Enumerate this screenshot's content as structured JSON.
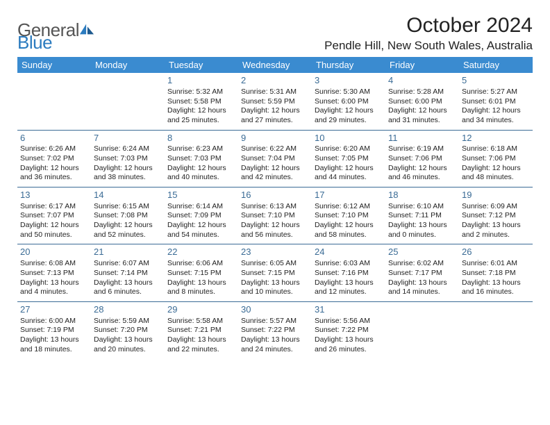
{
  "logo": {
    "word1": "General",
    "word2": "Blue"
  },
  "title": "October 2024",
  "location": "Pendle Hill, New South Wales, Australia",
  "header_bg": "#3a8bd0",
  "rule_color": "#3a6b95",
  "day_headers": [
    "Sunday",
    "Monday",
    "Tuesday",
    "Wednesday",
    "Thursday",
    "Friday",
    "Saturday"
  ],
  "weeks": [
    [
      {
        "n": "",
        "sr": "",
        "ss": "",
        "dl": ""
      },
      {
        "n": "",
        "sr": "",
        "ss": "",
        "dl": ""
      },
      {
        "n": "1",
        "sr": "Sunrise: 5:32 AM",
        "ss": "Sunset: 5:58 PM",
        "dl": "Daylight: 12 hours and 25 minutes."
      },
      {
        "n": "2",
        "sr": "Sunrise: 5:31 AM",
        "ss": "Sunset: 5:59 PM",
        "dl": "Daylight: 12 hours and 27 minutes."
      },
      {
        "n": "3",
        "sr": "Sunrise: 5:30 AM",
        "ss": "Sunset: 6:00 PM",
        "dl": "Daylight: 12 hours and 29 minutes."
      },
      {
        "n": "4",
        "sr": "Sunrise: 5:28 AM",
        "ss": "Sunset: 6:00 PM",
        "dl": "Daylight: 12 hours and 31 minutes."
      },
      {
        "n": "5",
        "sr": "Sunrise: 5:27 AM",
        "ss": "Sunset: 6:01 PM",
        "dl": "Daylight: 12 hours and 34 minutes."
      }
    ],
    [
      {
        "n": "6",
        "sr": "Sunrise: 6:26 AM",
        "ss": "Sunset: 7:02 PM",
        "dl": "Daylight: 12 hours and 36 minutes."
      },
      {
        "n": "7",
        "sr": "Sunrise: 6:24 AM",
        "ss": "Sunset: 7:03 PM",
        "dl": "Daylight: 12 hours and 38 minutes."
      },
      {
        "n": "8",
        "sr": "Sunrise: 6:23 AM",
        "ss": "Sunset: 7:03 PM",
        "dl": "Daylight: 12 hours and 40 minutes."
      },
      {
        "n": "9",
        "sr": "Sunrise: 6:22 AM",
        "ss": "Sunset: 7:04 PM",
        "dl": "Daylight: 12 hours and 42 minutes."
      },
      {
        "n": "10",
        "sr": "Sunrise: 6:20 AM",
        "ss": "Sunset: 7:05 PM",
        "dl": "Daylight: 12 hours and 44 minutes."
      },
      {
        "n": "11",
        "sr": "Sunrise: 6:19 AM",
        "ss": "Sunset: 7:06 PM",
        "dl": "Daylight: 12 hours and 46 minutes."
      },
      {
        "n": "12",
        "sr": "Sunrise: 6:18 AM",
        "ss": "Sunset: 7:06 PM",
        "dl": "Daylight: 12 hours and 48 minutes."
      }
    ],
    [
      {
        "n": "13",
        "sr": "Sunrise: 6:17 AM",
        "ss": "Sunset: 7:07 PM",
        "dl": "Daylight: 12 hours and 50 minutes."
      },
      {
        "n": "14",
        "sr": "Sunrise: 6:15 AM",
        "ss": "Sunset: 7:08 PM",
        "dl": "Daylight: 12 hours and 52 minutes."
      },
      {
        "n": "15",
        "sr": "Sunrise: 6:14 AM",
        "ss": "Sunset: 7:09 PM",
        "dl": "Daylight: 12 hours and 54 minutes."
      },
      {
        "n": "16",
        "sr": "Sunrise: 6:13 AM",
        "ss": "Sunset: 7:10 PM",
        "dl": "Daylight: 12 hours and 56 minutes."
      },
      {
        "n": "17",
        "sr": "Sunrise: 6:12 AM",
        "ss": "Sunset: 7:10 PM",
        "dl": "Daylight: 12 hours and 58 minutes."
      },
      {
        "n": "18",
        "sr": "Sunrise: 6:10 AM",
        "ss": "Sunset: 7:11 PM",
        "dl": "Daylight: 13 hours and 0 minutes."
      },
      {
        "n": "19",
        "sr": "Sunrise: 6:09 AM",
        "ss": "Sunset: 7:12 PM",
        "dl": "Daylight: 13 hours and 2 minutes."
      }
    ],
    [
      {
        "n": "20",
        "sr": "Sunrise: 6:08 AM",
        "ss": "Sunset: 7:13 PM",
        "dl": "Daylight: 13 hours and 4 minutes."
      },
      {
        "n": "21",
        "sr": "Sunrise: 6:07 AM",
        "ss": "Sunset: 7:14 PM",
        "dl": "Daylight: 13 hours and 6 minutes."
      },
      {
        "n": "22",
        "sr": "Sunrise: 6:06 AM",
        "ss": "Sunset: 7:15 PM",
        "dl": "Daylight: 13 hours and 8 minutes."
      },
      {
        "n": "23",
        "sr": "Sunrise: 6:05 AM",
        "ss": "Sunset: 7:15 PM",
        "dl": "Daylight: 13 hours and 10 minutes."
      },
      {
        "n": "24",
        "sr": "Sunrise: 6:03 AM",
        "ss": "Sunset: 7:16 PM",
        "dl": "Daylight: 13 hours and 12 minutes."
      },
      {
        "n": "25",
        "sr": "Sunrise: 6:02 AM",
        "ss": "Sunset: 7:17 PM",
        "dl": "Daylight: 13 hours and 14 minutes."
      },
      {
        "n": "26",
        "sr": "Sunrise: 6:01 AM",
        "ss": "Sunset: 7:18 PM",
        "dl": "Daylight: 13 hours and 16 minutes."
      }
    ],
    [
      {
        "n": "27",
        "sr": "Sunrise: 6:00 AM",
        "ss": "Sunset: 7:19 PM",
        "dl": "Daylight: 13 hours and 18 minutes."
      },
      {
        "n": "28",
        "sr": "Sunrise: 5:59 AM",
        "ss": "Sunset: 7:20 PM",
        "dl": "Daylight: 13 hours and 20 minutes."
      },
      {
        "n": "29",
        "sr": "Sunrise: 5:58 AM",
        "ss": "Sunset: 7:21 PM",
        "dl": "Daylight: 13 hours and 22 minutes."
      },
      {
        "n": "30",
        "sr": "Sunrise: 5:57 AM",
        "ss": "Sunset: 7:22 PM",
        "dl": "Daylight: 13 hours and 24 minutes."
      },
      {
        "n": "31",
        "sr": "Sunrise: 5:56 AM",
        "ss": "Sunset: 7:22 PM",
        "dl": "Daylight: 13 hours and 26 minutes."
      },
      {
        "n": "",
        "sr": "",
        "ss": "",
        "dl": ""
      },
      {
        "n": "",
        "sr": "",
        "ss": "",
        "dl": ""
      }
    ]
  ]
}
